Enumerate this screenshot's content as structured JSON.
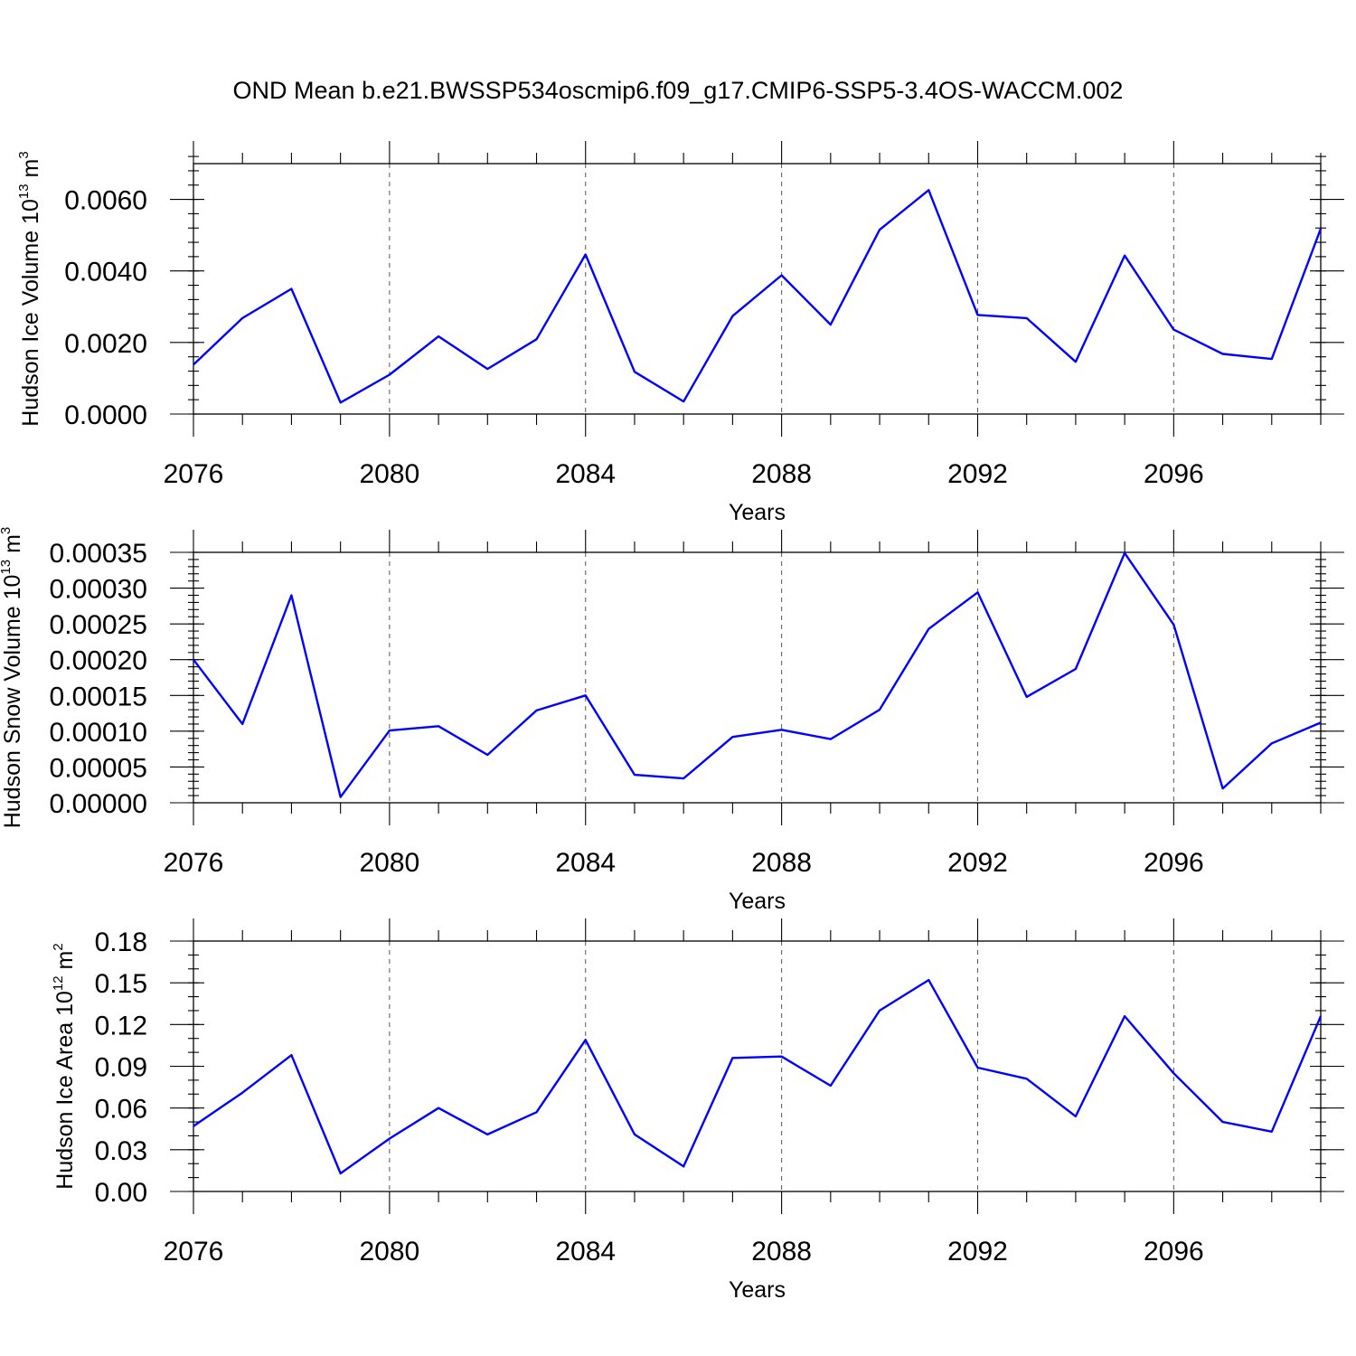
{
  "title": "OND Mean b.e21.BWSSP534oscmip6.f09_g17.CMIP6-SSP5-3.4OS-WACCM.002",
  "colors": {
    "line": "#0000ff",
    "axis": "#000000",
    "grid": "#555555"
  },
  "chart_data": [
    {
      "type": "line",
      "ylabel": "Hudson Ice Volume 10",
      "ylabel_exp": "13",
      "ylabel_unit": " m",
      "ylabel_unit_exp": "3",
      "xlabel": "Years",
      "xlim": [
        2076,
        2099
      ],
      "ylim": [
        0,
        0.007
      ],
      "x_ticks": [
        2076,
        2080,
        2084,
        2088,
        2092,
        2096
      ],
      "x_tick_labels": [
        "2076",
        "2080",
        "2084",
        "2088",
        "2092",
        "2096"
      ],
      "y_ticks": [
        0,
        0.002,
        0.004,
        0.006
      ],
      "y_tick_labels": [
        "0.0000",
        "0.0020",
        "0.0040",
        "0.0060"
      ],
      "y_minor_step": 0.0004,
      "grid": "vertical dashed at major x ticks",
      "x": [
        2076,
        2077,
        2078,
        2079,
        2080,
        2081,
        2082,
        2083,
        2084,
        2085,
        2086,
        2087,
        2088,
        2089,
        2090,
        2091,
        2092,
        2093,
        2094,
        2095,
        2096,
        2097,
        2098,
        2099
      ],
      "values": [
        0.00138,
        0.00268,
        0.0035,
        0.00032,
        0.0011,
        0.00217,
        0.00126,
        0.00209,
        0.00446,
        0.00118,
        0.00035,
        0.00274,
        0.00388,
        0.0025,
        0.00515,
        0.00626,
        0.00277,
        0.00268,
        0.00146,
        0.00443,
        0.00236,
        0.00168,
        0.00154,
        0.00518
      ]
    },
    {
      "type": "line",
      "ylabel": "Hudson Snow Volume 10",
      "ylabel_exp": "13",
      "ylabel_unit": " m",
      "ylabel_unit_exp": "3",
      "xlabel": "Years",
      "xlim": [
        2076,
        2099
      ],
      "ylim": [
        0,
        0.00035
      ],
      "x_ticks": [
        2076,
        2080,
        2084,
        2088,
        2092,
        2096
      ],
      "x_tick_labels": [
        "2076",
        "2080",
        "2084",
        "2088",
        "2092",
        "2096"
      ],
      "y_ticks": [
        0,
        5e-05,
        0.0001,
        0.00015,
        0.0002,
        0.00025,
        0.0003,
        0.00035
      ],
      "y_tick_labels": [
        "0.00000",
        "0.00005",
        "0.00010",
        "0.00015",
        "0.00020",
        "0.00025",
        "0.00030",
        "0.00035"
      ],
      "y_minor_step": 1e-05,
      "grid": "vertical dashed at major x ticks",
      "x": [
        2076,
        2077,
        2078,
        2079,
        2080,
        2081,
        2082,
        2083,
        2084,
        2085,
        2086,
        2087,
        2088,
        2089,
        2090,
        2091,
        2092,
        2093,
        2094,
        2095,
        2096,
        2097,
        2098,
        2099
      ],
      "values": [
        0.0002,
        0.00011,
        0.00029,
        8e-06,
        0.000101,
        0.000107,
        6.7e-05,
        0.000129,
        0.00015,
        3.9e-05,
        3.4e-05,
        9.2e-05,
        0.000102,
        8.9e-05,
        0.00013,
        0.000243,
        0.000294,
        0.000148,
        0.000187,
        0.000349,
        0.000249,
        2e-05,
        8.3e-05,
        0.000112
      ]
    },
    {
      "type": "line",
      "ylabel": "Hudson Ice Area 10",
      "ylabel_exp": "12",
      "ylabel_unit": " m",
      "ylabel_unit_exp": "2",
      "xlabel": "Years",
      "xlim": [
        2076,
        2099
      ],
      "ylim": [
        0,
        0.18
      ],
      "x_ticks": [
        2076,
        2080,
        2084,
        2088,
        2092,
        2096
      ],
      "x_tick_labels": [
        "2076",
        "2080",
        "2084",
        "2088",
        "2092",
        "2096"
      ],
      "y_ticks": [
        0,
        0.03,
        0.06,
        0.09,
        0.12,
        0.15,
        0.18
      ],
      "y_tick_labels": [
        "0.00",
        "0.03",
        "0.06",
        "0.09",
        "0.12",
        "0.15",
        "0.18"
      ],
      "y_minor_step": 0.01,
      "grid": "vertical dashed at major x ticks",
      "x": [
        2076,
        2077,
        2078,
        2079,
        2080,
        2081,
        2082,
        2083,
        2084,
        2085,
        2086,
        2087,
        2088,
        2089,
        2090,
        2091,
        2092,
        2093,
        2094,
        2095,
        2096,
        2097,
        2098,
        2099
      ],
      "values": [
        0.047,
        0.071,
        0.098,
        0.013,
        0.038,
        0.06,
        0.041,
        0.057,
        0.109,
        0.041,
        0.018,
        0.096,
        0.097,
        0.076,
        0.13,
        0.152,
        0.089,
        0.081,
        0.054,
        0.126,
        0.085,
        0.05,
        0.043,
        0.126
      ]
    }
  ]
}
